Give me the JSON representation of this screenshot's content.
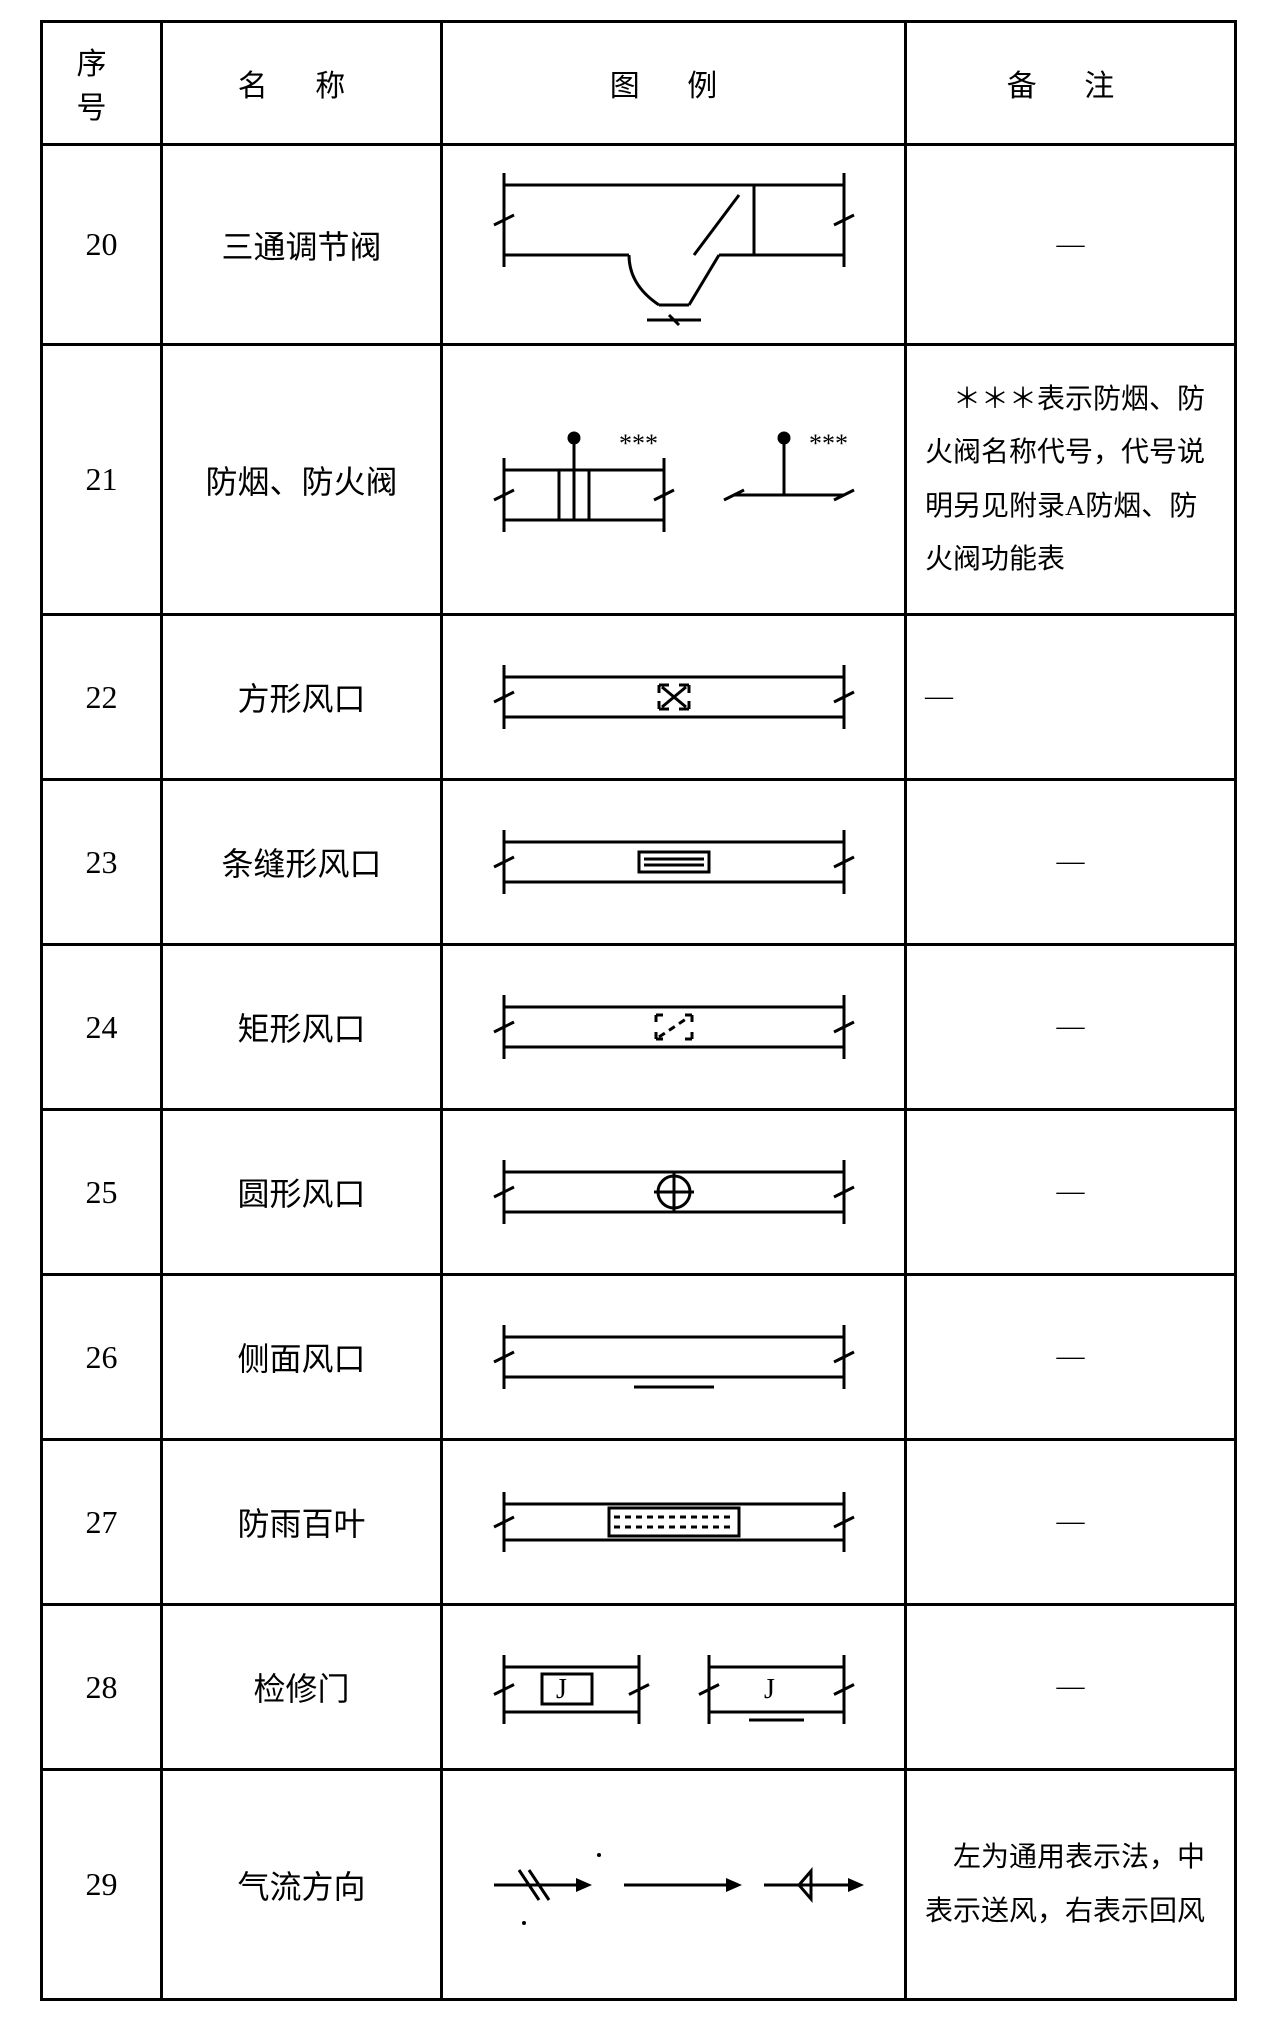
{
  "headers": {
    "seq": "序 号",
    "name": "名 称",
    "symbol": "图 例",
    "note": "备 注"
  },
  "dash": "—",
  "stroke": "#000",
  "stroke_w": 3,
  "rows": [
    {
      "seq": "20",
      "name": "三通调节阀",
      "note": "—",
      "note_center": true,
      "svg": "tee"
    },
    {
      "seq": "21",
      "name": "防烟、防火阀",
      "note": "　＊＊＊表示防烟、防火阀名称代号，代号说明另见附录A防烟、防火阀功能表",
      "note_center": false,
      "svg": "fire",
      "star": "***"
    },
    {
      "seq": "22",
      "name": "方形风口",
      "note": "—",
      "note_center": false,
      "svg": "square"
    },
    {
      "seq": "23",
      "name": "条缝形风口",
      "note": "—",
      "note_center": true,
      "svg": "slot"
    },
    {
      "seq": "24",
      "name": "矩形风口",
      "note": "—",
      "note_center": true,
      "svg": "rect"
    },
    {
      "seq": "25",
      "name": "圆形风口",
      "note": "—",
      "note_center": true,
      "svg": "circle"
    },
    {
      "seq": "26",
      "name": "侧面风口",
      "note": "—",
      "note_center": true,
      "svg": "side"
    },
    {
      "seq": "27",
      "name": "防雨百叶",
      "note": "—",
      "note_center": true,
      "svg": "louver"
    },
    {
      "seq": "28",
      "name": "检修门",
      "note": "—",
      "note_center": true,
      "svg": "door",
      "letter": "J"
    },
    {
      "seq": "29",
      "name": "气流方向",
      "note": "　左为通用表示法，中表示送风，右表示回风",
      "note_center": false,
      "svg": "flow"
    }
  ]
}
